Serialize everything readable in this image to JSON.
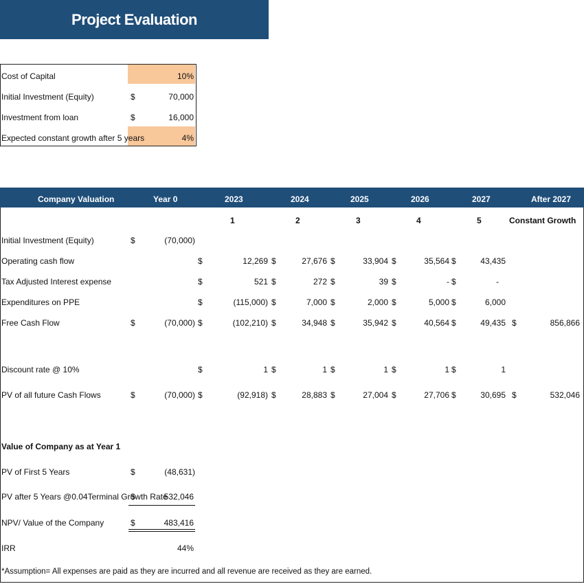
{
  "title": "Project Evaluation",
  "assumptions": [
    {
      "label": "Cost of Capital",
      "currency": "",
      "value": "10%",
      "highlight": true
    },
    {
      "label": "Initial Investment (Equity)",
      "currency": "$",
      "value": "70,000",
      "highlight": false
    },
    {
      "label": "Investment from loan",
      "currency": "$",
      "value": "16,000",
      "highlight": false
    },
    {
      "label": "Expected constant growth after 5 years",
      "currency": "",
      "value": "4%",
      "highlight": true
    }
  ],
  "valuation": {
    "headers": [
      "Company Valuation",
      "Year 0",
      "2023",
      "2024",
      "2025",
      "2026",
      "2027",
      "After 2027"
    ],
    "year_numbers": [
      "1",
      "2",
      "3",
      "4",
      "5",
      "Constant Growth"
    ],
    "rows": [
      {
        "label": "Initial Investment (Equity)",
        "y0": "(70,000)",
        "y0_dollar": true,
        "vals": [
          "",
          "",
          "",
          "",
          "",
          ""
        ]
      },
      {
        "label": "Operating cash flow",
        "y0": "",
        "vals": [
          "12,269",
          "27,676",
          "33,904",
          "35,564",
          "43,435",
          ""
        ]
      },
      {
        "label": "Tax Adjusted Interest expense",
        "y0": "",
        "vals": [
          "521",
          "272",
          "39",
          "-",
          "-",
          ""
        ]
      },
      {
        "label": "Expenditures on PPE",
        "y0": "",
        "vals": [
          "(115,000)",
          "7,000",
          "2,000",
          "5,000",
          "6,000",
          ""
        ]
      },
      {
        "label": "Free Cash Flow",
        "y0": "(70,000)",
        "y0_dollar": true,
        "vals": [
          "(102,210)",
          "34,948",
          "35,942",
          "40,564",
          "49,435",
          "856,866"
        ]
      },
      {
        "label": "Discount rate @ 10%",
        "y0": "",
        "vals": [
          "1",
          "1",
          "1",
          "1",
          "1",
          ""
        ]
      },
      {
        "label": "PV of all future Cash Flows",
        "y0": "(70,000)",
        "y0_dollar": true,
        "vals": [
          "(92,918)",
          "28,883",
          "27,004",
          "27,706",
          "30,695",
          "532,046"
        ]
      }
    ]
  },
  "summary": {
    "heading": "Value of Company as at Year 1",
    "rows": [
      {
        "label": "PV of First 5 Years",
        "currency": "$",
        "value": "(48,631)"
      },
      {
        "label": "PV after 5 Years @0.04Terminal Growth Rate",
        "currency": "$",
        "value": "532,046"
      },
      {
        "label": "NPV/ Value of the Company",
        "currency": "$",
        "value": "483,416"
      },
      {
        "label": "IRR",
        "currency": "",
        "value": "44%"
      }
    ]
  },
  "footnote": "*Assumption= All expenses are paid as they are incurred and all revenue are received as they are earned.",
  "colors": {
    "header_bg": "#1f4e79",
    "highlight": "#f8c79a"
  }
}
